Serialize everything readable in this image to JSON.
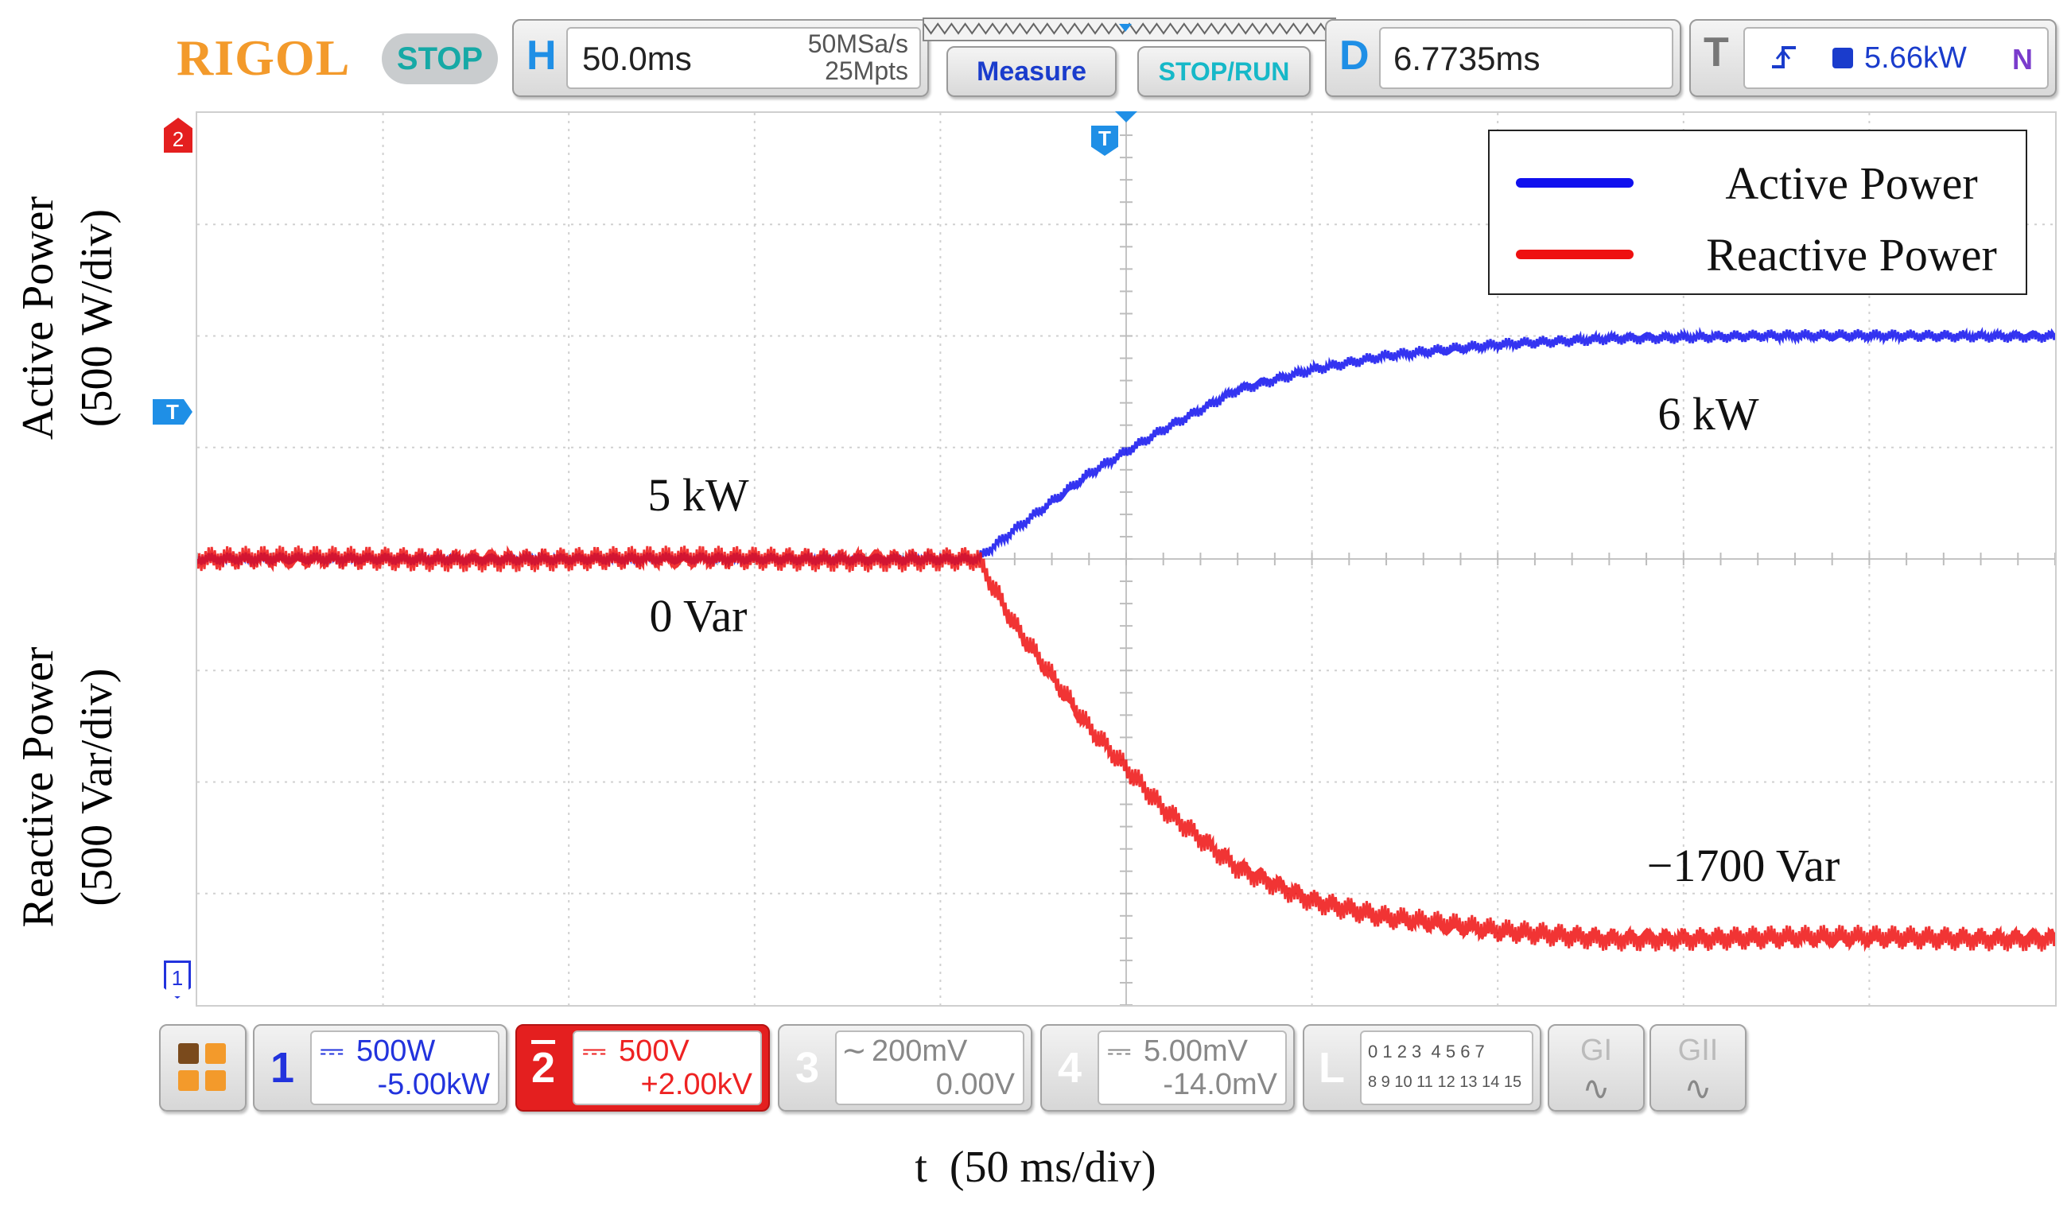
{
  "header": {
    "brand": "RIGOL",
    "run_state": "STOP",
    "horizontal": {
      "letter": "H",
      "timebase": "50.0ms",
      "sample_rate": "50MSa/s",
      "memory_depth": "25Mpts"
    },
    "measure_label": "Measure",
    "stop_run_label": "STOP/RUN",
    "delay": {
      "letter": "D",
      "value": "6.7735ms"
    },
    "trigger": {
      "letter": "T",
      "level": "5.66kW",
      "mode": "N"
    }
  },
  "markers": {
    "ch2": "2",
    "trig_level": "T",
    "ch1": "1",
    "trig_pos": "T"
  },
  "chart_data": {
    "type": "line",
    "xlabel": "t  (50 ms/div)",
    "ylabel_left": "Active Power (500 W/div)",
    "ylabel_right": "Reactive Power (500 Var/div)",
    "x_unit": "ms",
    "x_range": [
      0,
      500
    ],
    "series": [
      {
        "name": "Active Power",
        "color": "#1010ee",
        "unit": "W",
        "x": [
          0,
          50,
          100,
          150,
          200,
          210,
          220,
          240,
          260,
          280,
          300,
          320,
          350,
          380,
          420,
          460,
          500
        ],
        "y": [
          5000,
          5000,
          5000,
          5000,
          5000,
          5000,
          5130,
          5380,
          5580,
          5760,
          5850,
          5910,
          5960,
          5990,
          6000,
          6000,
          6000
        ]
      },
      {
        "name": "Reactive Power",
        "color": "#ee1010",
        "unit": "Var",
        "x": [
          0,
          50,
          100,
          150,
          200,
          210,
          220,
          240,
          260,
          280,
          300,
          320,
          350,
          380,
          420,
          460,
          500
        ],
        "y": [
          0,
          0,
          0,
          0,
          0,
          0,
          -300,
          -760,
          -1120,
          -1380,
          -1530,
          -1610,
          -1670,
          -1700,
          -1700,
          -1700,
          -1700
        ]
      }
    ],
    "legend": {
      "position": "top-right",
      "items": [
        "Active Power",
        "Reactive Power"
      ]
    },
    "annotations": [
      "5 kW",
      "0 Var",
      "6 kW",
      "−1700 Var"
    ],
    "grid": true
  },
  "channels": [
    {
      "num": "1",
      "coupling": "⎓",
      "scale": "500W",
      "offset": "-5.00kW",
      "color": "#2233dd",
      "active": true
    },
    {
      "num": "2",
      "coupling": "⎓",
      "scale": "500V",
      "offset": "+2.00kV",
      "color": "#ee2222",
      "active": true
    },
    {
      "num": "3",
      "coupling": "∼",
      "scale": "200mV",
      "offset": "0.00V",
      "color": "#888888",
      "active": false
    },
    {
      "num": "4",
      "coupling": "⎓",
      "scale": "5.00mV",
      "offset": "-14.0mV",
      "color": "#888888",
      "active": false
    }
  ],
  "logic": {
    "letter": "L",
    "row1": "0 1 2 3  4 5 6 7",
    "row2": "8 9 10 11 12 13 14 15"
  },
  "decoders": [
    {
      "label": "GI"
    },
    {
      "label": "GII"
    }
  ]
}
